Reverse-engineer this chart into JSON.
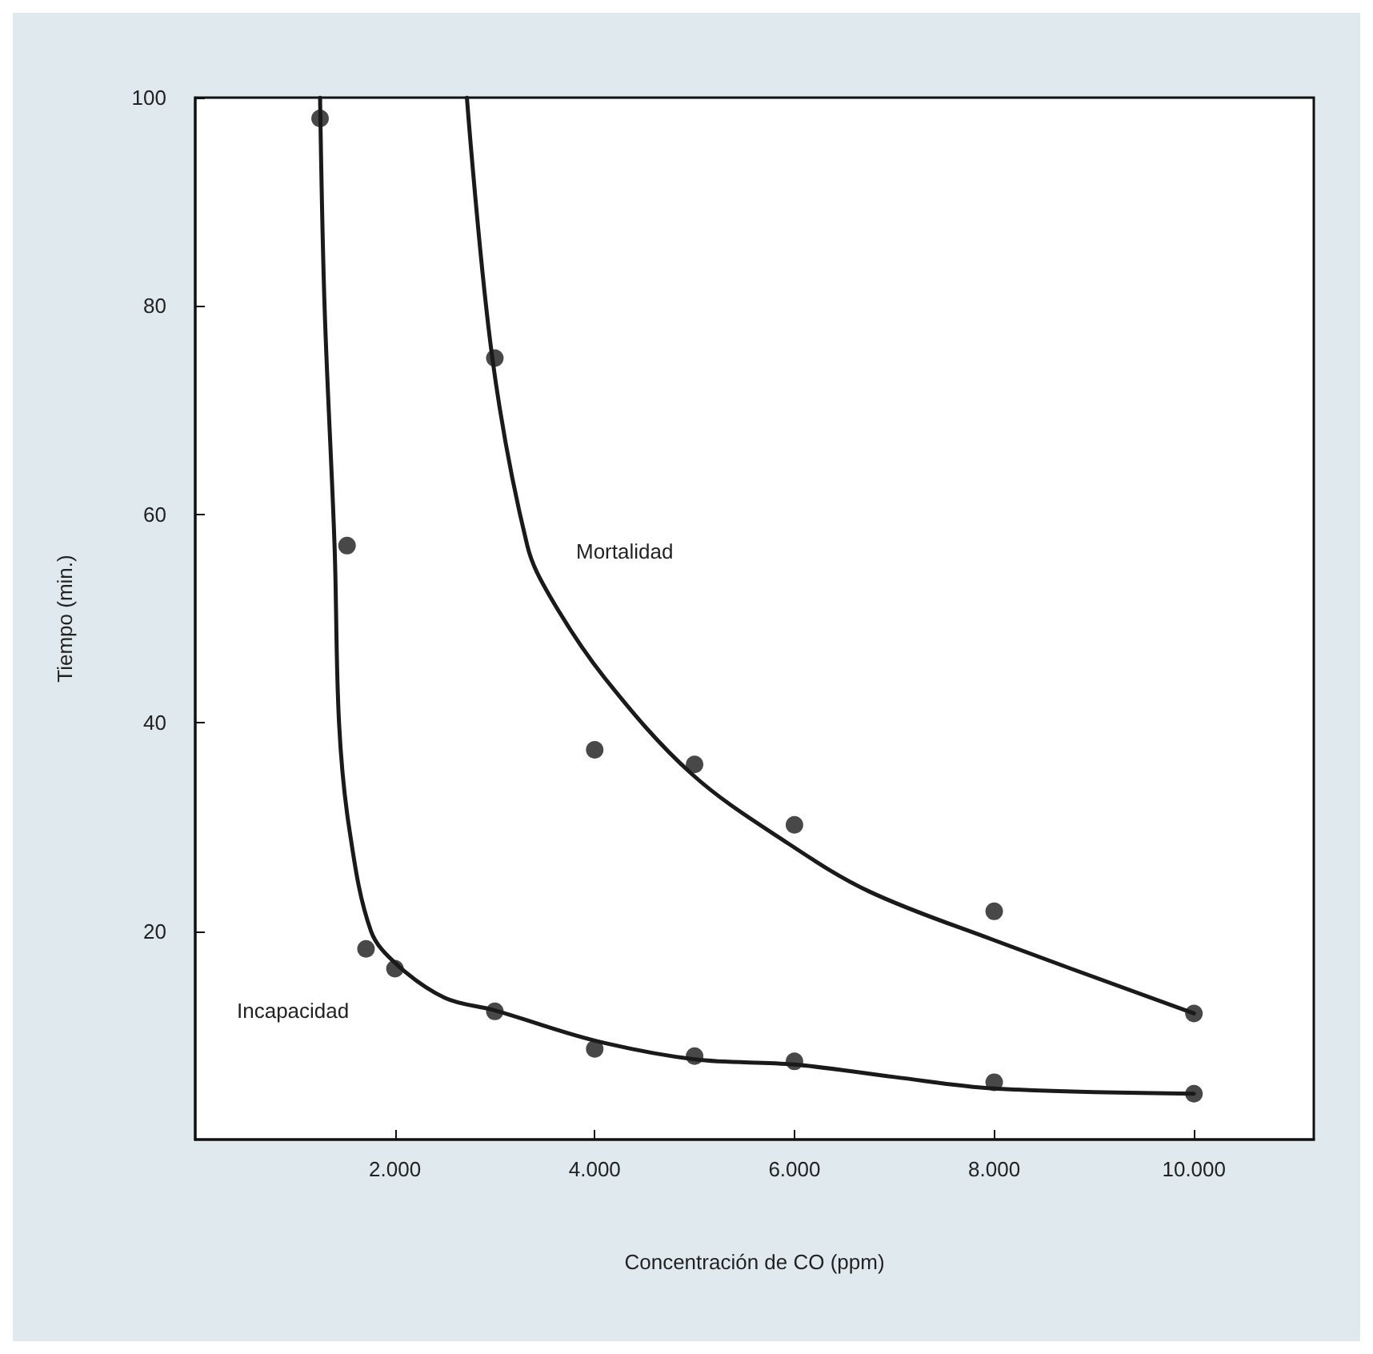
{
  "chart_data": {
    "type": "scatter",
    "xlabel": "Concentración de CO (ppm)",
    "ylabel": "Tiempo (min.)",
    "xlim": [
      0,
      11200
    ],
    "ylim": [
      0,
      100
    ],
    "xticks": [
      {
        "value": 2000,
        "label": "2.000"
      },
      {
        "value": 4000,
        "label": "4.000"
      },
      {
        "value": 6000,
        "label": "6.000"
      },
      {
        "value": 8000,
        "label": "8.000"
      },
      {
        "value": 10000,
        "label": "10.000"
      }
    ],
    "yticks": [
      20,
      40,
      60,
      80,
      100
    ],
    "grid": false,
    "series": [
      {
        "marker": "circle",
        "color": "#1a1a1a",
        "x": [
          1250,
          1520,
          1710,
          2000,
          3000,
          4000,
          5000,
          6000,
          8000,
          10000
        ],
        "values": [
          98,
          57,
          18.3,
          16.4,
          12.3,
          8.7,
          8,
          7.5,
          5.5,
          4.4
        ]
      },
      {
        "marker": "circle",
        "color": "#1a1a1a",
        "x": [
          3000,
          4000,
          5000,
          6000,
          8000,
          10000
        ],
        "values": [
          75,
          37.4,
          36,
          30.2,
          21.9,
          12.1
        ]
      },
      {
        "type": "line",
        "marker": "none",
        "line_style": "solid",
        "color": "#1a1a1a",
        "x": [
          1250,
          1295,
          1395,
          1440,
          1540,
          1760,
          2030,
          2500,
          3000,
          4000,
          5000,
          6000,
          7000,
          8000,
          10000
        ],
        "values": [
          100,
          80,
          57,
          40,
          30,
          20,
          16.7,
          13.6,
          12.4,
          9.5,
          7.7,
          7.2,
          6,
          4.9,
          4.4
        ]
      },
      {
        "type": "line",
        "marker": "none",
        "line_style": "solid",
        "color": "#1a1a1a",
        "x": [
          2720,
          2975,
          3325,
          3560,
          4100,
          4970,
          5940,
          6750,
          7980,
          10000
        ],
        "values": [
          100,
          75,
          57,
          52,
          44.3,
          35.1,
          28.4,
          23.8,
          19.2,
          12.1
        ]
      }
    ],
    "annotations": [
      "Mortalidad",
      "Incapacidad"
    ]
  }
}
